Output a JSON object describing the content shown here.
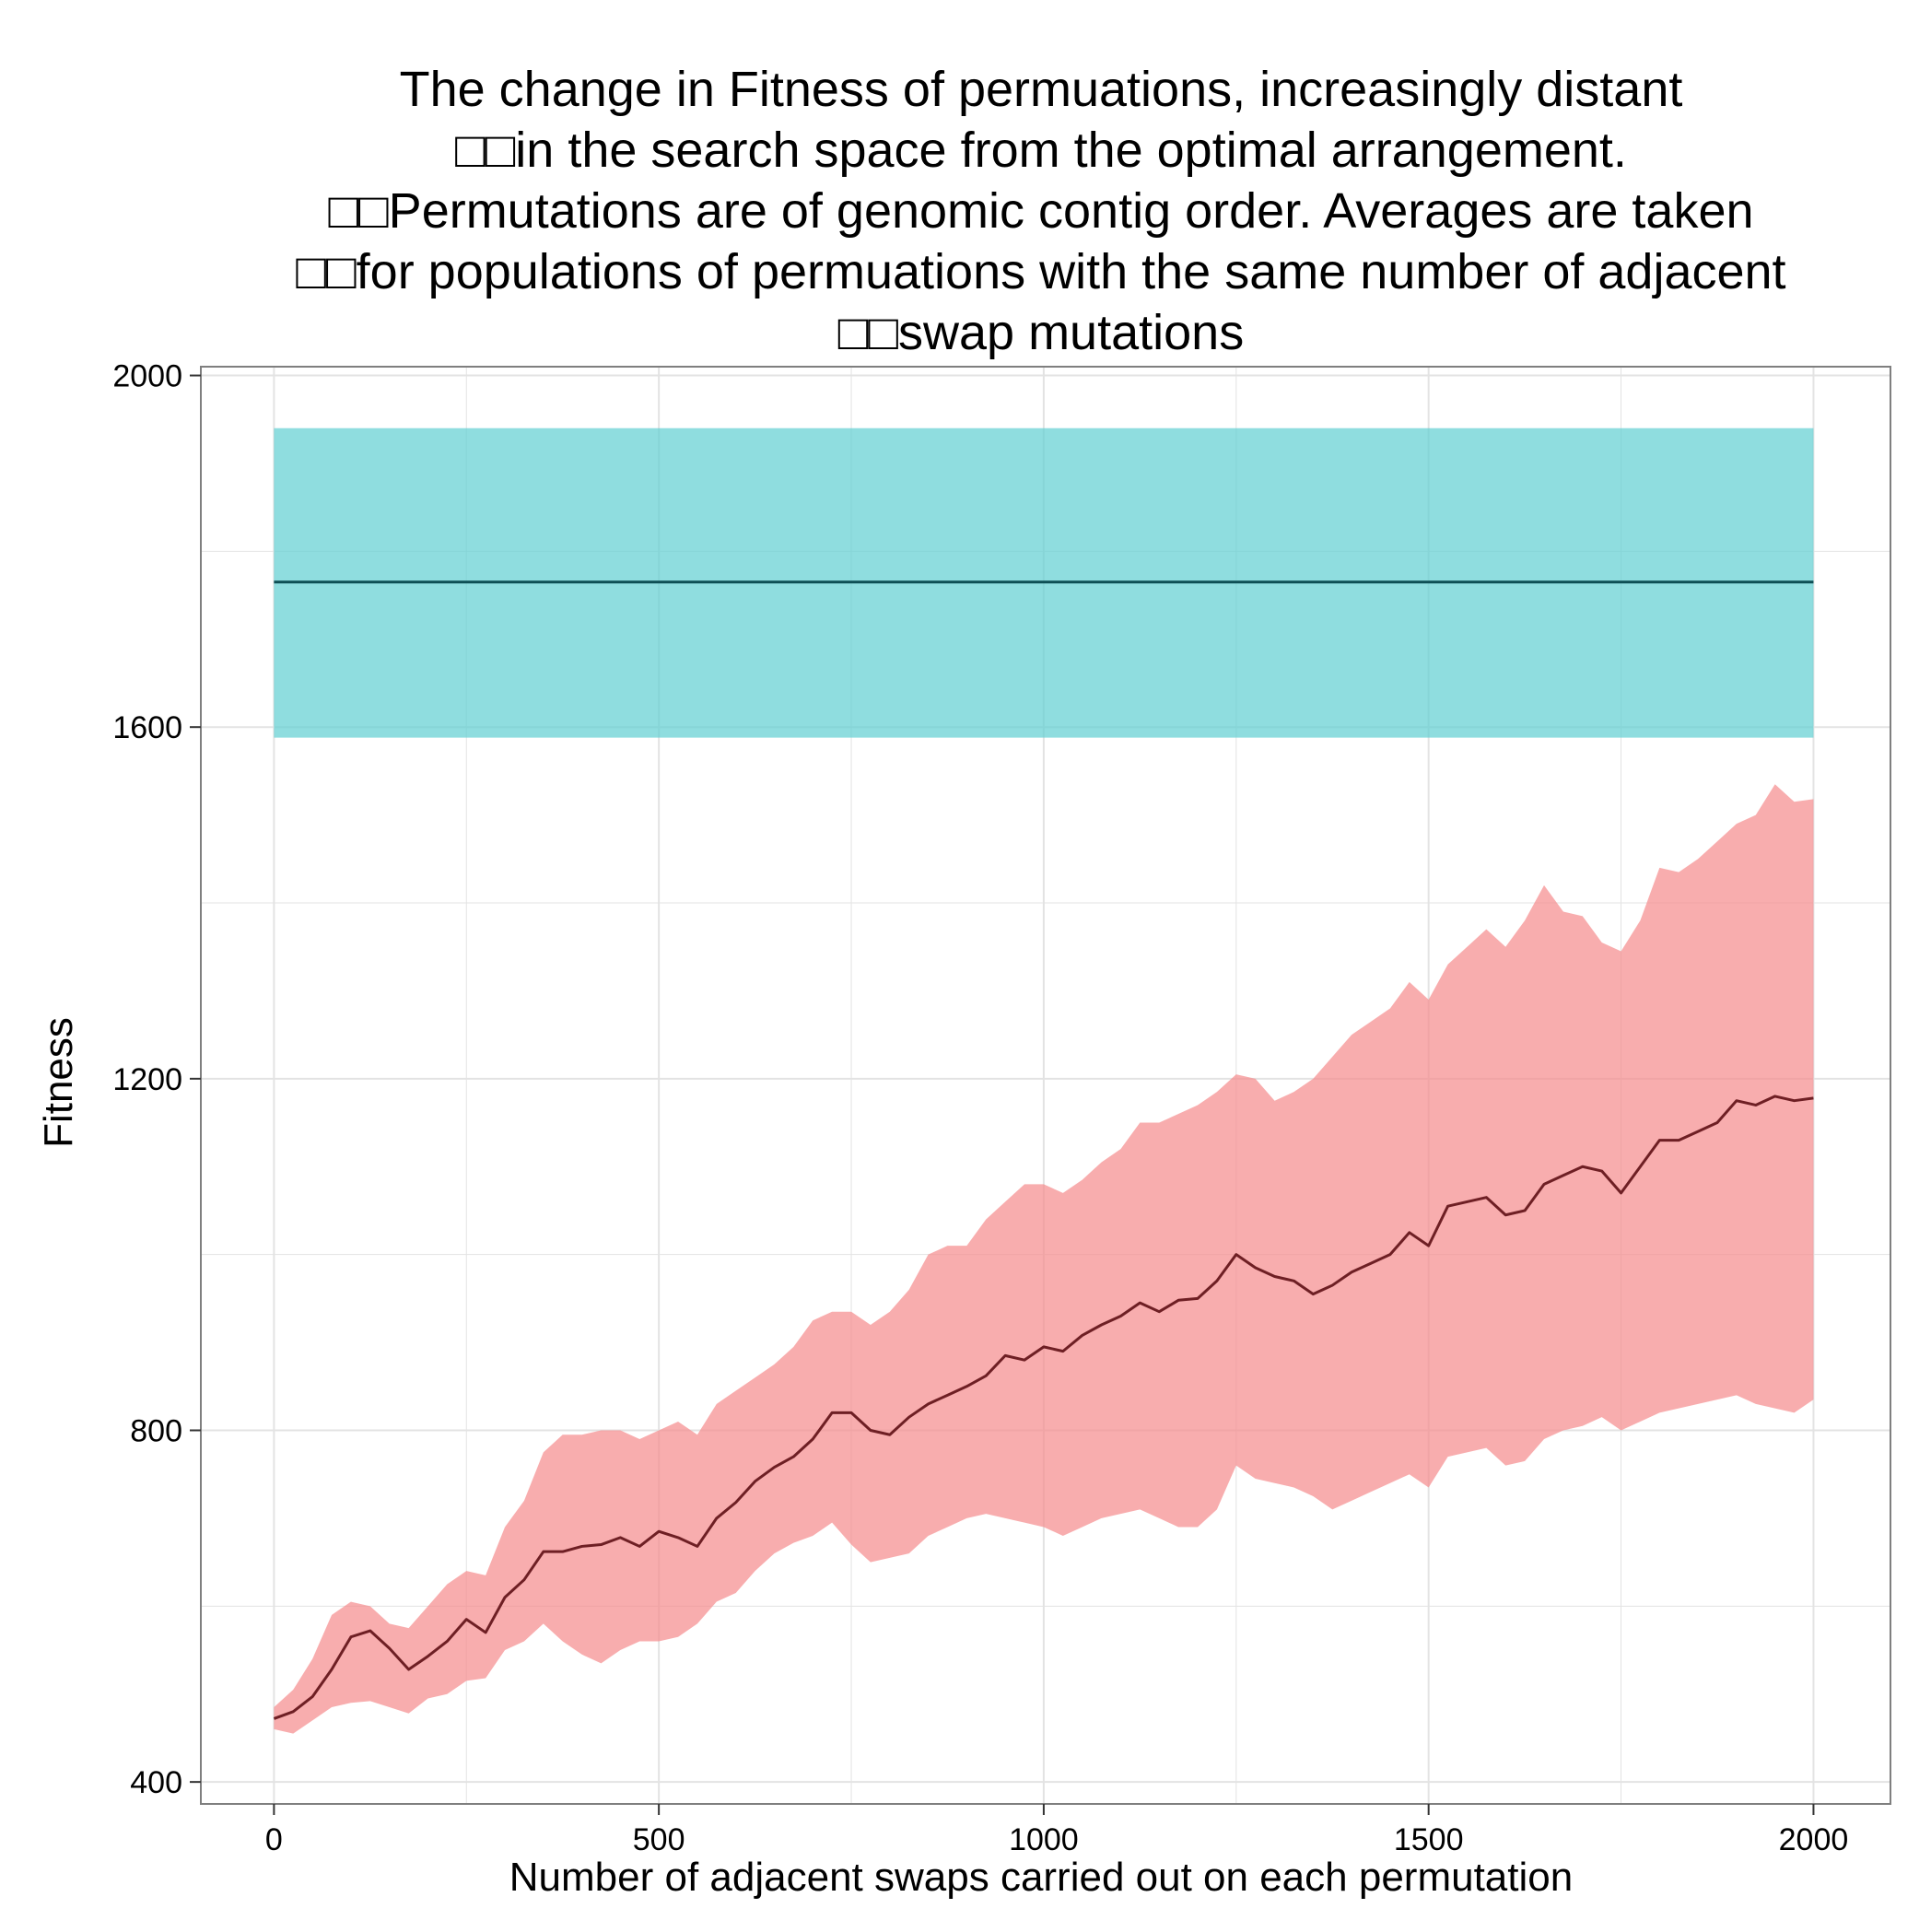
{
  "chart_data": {
    "type": "line",
    "title": "The change in Fitness of permuations, increasingly distant\n□□in the search space from the optimal arrangement.\n□□Permutations are of genomic contig order. Averages are taken\n□□for populations of permuations with the same number of adjacent\n□□swap mutations",
    "xlabel": "Number of adjacent swaps carried out on each permutation",
    "ylabel": "Fitness",
    "xlim": [
      -95,
      2100
    ],
    "ylim": [
      375,
      2010
    ],
    "x_ticks": [
      0,
      500,
      1000,
      1500,
      2000
    ],
    "x_tick_labels": [
      "0",
      "500",
      "1000",
      "1500",
      "2000"
    ],
    "y_ticks": [
      400,
      800,
      1200,
      1600,
      2000
    ],
    "y_tick_labels": [
      "400",
      "800",
      "1200",
      "1600",
      "2000"
    ],
    "grid": true,
    "legend": "none",
    "colors": {
      "optimal_band": "#5fcfd1",
      "optimal_line": "#0e4f55",
      "permuted_band": "#f58a8b",
      "permuted_line": "#6e1f24",
      "grid": "#e3e3e3",
      "panel_border": "#7f7f7f"
    },
    "series": [
      {
        "x": [
          0,
          2000
        ],
        "y": [
          1765,
          1765
        ],
        "lower": [
          1588,
          1588
        ],
        "upper": [
          1940,
          1940
        ]
      },
      {
        "x": [
          0,
          25,
          50,
          75,
          100,
          125,
          150,
          175,
          200,
          225,
          250,
          275,
          300,
          325,
          350,
          375,
          400,
          425,
          450,
          475,
          500,
          525,
          550,
          575,
          600,
          625,
          650,
          675,
          700,
          725,
          750,
          775,
          800,
          825,
          850,
          875,
          900,
          925,
          950,
          975,
          1000,
          1025,
          1050,
          1075,
          1100,
          1125,
          1150,
          1175,
          1200,
          1225,
          1250,
          1275,
          1300,
          1325,
          1350,
          1375,
          1400,
          1425,
          1450,
          1475,
          1500,
          1525,
          1550,
          1575,
          1600,
          1625,
          1650,
          1675,
          1700,
          1725,
          1750,
          1775,
          1800,
          1825,
          1850,
          1875,
          1900,
          1925,
          1950,
          1975,
          2000
        ],
        "y": [
          472,
          480,
          497,
          528,
          565,
          572,
          552,
          528,
          543,
          560,
          585,
          570,
          610,
          630,
          662,
          662,
          668,
          670,
          678,
          668,
          685,
          678,
          668,
          700,
          718,
          742,
          758,
          770,
          790,
          820,
          820,
          800,
          795,
          815,
          830,
          840,
          850,
          862,
          885,
          880,
          895,
          890,
          908,
          920,
          930,
          945,
          935,
          948,
          950,
          970,
          1000,
          985,
          975,
          970,
          955,
          965,
          980,
          990,
          1000,
          1025,
          1010,
          1055,
          1060,
          1065,
          1045,
          1050,
          1080,
          1090,
          1100,
          1095,
          1070,
          1100,
          1130,
          1130,
          1140,
          1150,
          1175,
          1170,
          1180,
          1175,
          1178
        ],
        "lower": [
          460,
          455,
          470,
          485,
          490,
          492,
          485,
          478,
          495,
          500,
          515,
          518,
          550,
          560,
          580,
          560,
          545,
          535,
          550,
          560,
          560,
          565,
          580,
          605,
          615,
          640,
          660,
          672,
          680,
          695,
          670,
          650,
          655,
          660,
          680,
          690,
          700,
          705,
          700,
          695,
          690,
          680,
          690,
          700,
          705,
          710,
          700,
          690,
          690,
          710,
          760,
          745,
          740,
          735,
          725,
          710,
          720,
          730,
          740,
          750,
          735,
          770,
          775,
          780,
          760,
          765,
          790,
          800,
          805,
          815,
          800,
          810,
          820,
          825,
          830,
          835,
          840,
          830,
          825,
          820,
          835
        ],
        "upper": [
          485,
          505,
          540,
          590,
          605,
          600,
          580,
          575,
          600,
          625,
          640,
          635,
          690,
          720,
          775,
          795,
          795,
          800,
          800,
          790,
          800,
          810,
          795,
          830,
          845,
          860,
          875,
          895,
          925,
          935,
          935,
          920,
          935,
          960,
          1000,
          1010,
          1010,
          1040,
          1060,
          1080,
          1080,
          1070,
          1085,
          1105,
          1120,
          1150,
          1150,
          1160,
          1170,
          1185,
          1205,
          1200,
          1175,
          1185,
          1200,
          1225,
          1250,
          1265,
          1280,
          1310,
          1290,
          1330,
          1350,
          1370,
          1350,
          1380,
          1420,
          1390,
          1385,
          1355,
          1345,
          1380,
          1440,
          1435,
          1450,
          1470,
          1490,
          1500,
          1535,
          1515,
          1518
        ]
      }
    ]
  }
}
